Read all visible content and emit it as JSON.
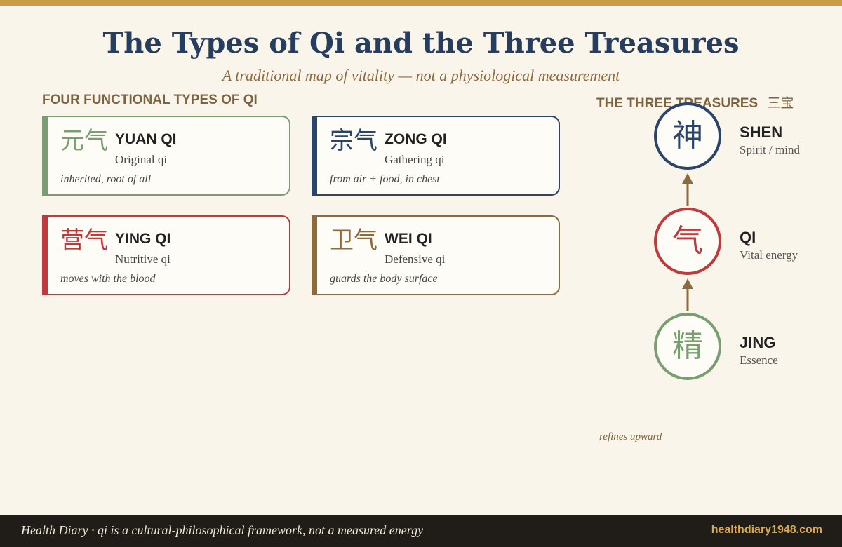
{
  "title": "The Types of Qi and the Three Treasures",
  "subtitle": "A traditional map of vitality — not a physiological measurement",
  "left_heading": "FOUR FUNCTIONAL TYPES OF QI",
  "right_heading": "THE THREE TREASURES",
  "right_heading_hanzi": "三宝",
  "qi_types": [
    {
      "hanzi": "元气",
      "name": "YUAN QI",
      "gloss": "Original qi",
      "note": "inherited, root of all",
      "color": "#7a9e72"
    },
    {
      "hanzi": "宗气",
      "name": "ZONG QI",
      "gloss": "Gathering qi",
      "note": "from air + food, in chest",
      "color": "#2c4468"
    },
    {
      "hanzi": "营气",
      "name": "YING QI",
      "gloss": "Nutritive qi",
      "note": "moves with the blood",
      "color": "#c0393b"
    },
    {
      "hanzi": "卫气",
      "name": "WEI QI",
      "gloss": "Defensive qi",
      "note": "guards the body surface",
      "color": "#8c6a3e"
    }
  ],
  "treasures": [
    {
      "hanzi": "神",
      "name": "SHEN",
      "gloss": "Spirit / mind",
      "color": "#2c4468"
    },
    {
      "hanzi": "气",
      "name": "QI",
      "gloss": "Vital energy",
      "color": "#c0393b"
    },
    {
      "hanzi": "精",
      "name": "JING",
      "gloss": "Essence",
      "color": "#7a9e72"
    }
  ],
  "arrow_color": "#8c6a3e",
  "refine_note": "refines upward",
  "footer": {
    "text": "Health Diary · qi is a cultural-philosophical framework, not a measured energy",
    "url": "healthdiary1948.com"
  }
}
